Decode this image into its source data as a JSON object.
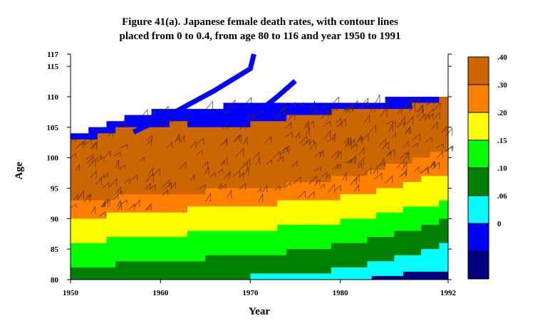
{
  "chart_data": {
    "type": "heatmap",
    "title_lines": [
      "Figure 41(a). Japanese female death rates, with contour lines",
      "placed from 0 to 0.4, from age 80 to 116 and year 1950 to 1991"
    ],
    "xlabel": "Year",
    "ylabel": "Age",
    "xlim": [
      1950,
      1992
    ],
    "ylim": [
      80,
      117
    ],
    "x_ticks": [
      {
        "value": 1950,
        "label": "1950"
      },
      {
        "value": 1960,
        "label": "1960"
      },
      {
        "value": 1970,
        "label": "1970"
      },
      {
        "value": 1980,
        "label": "1980"
      },
      {
        "value": 1992,
        "label": "1992"
      }
    ],
    "y_ticks": [
      {
        "value": 80,
        "label": "80"
      },
      {
        "value": 85,
        "label": "85"
      },
      {
        "value": 90,
        "label": "90"
      },
      {
        "value": 95,
        "label": "95"
      },
      {
        "value": 100,
        "label": "100"
      },
      {
        "value": 105,
        "label": "105"
      },
      {
        "value": 110,
        "label": "110"
      },
      {
        "value": 115,
        "label": "115"
      },
      {
        "value": 117,
        "label": "117"
      }
    ],
    "legend": {
      "placement": "right",
      "bins": [
        {
          "color": "#000080",
          "label": ""
        },
        {
          "color": "#0000ff",
          "label": "0"
        },
        {
          "color": "#00ffff",
          "label": ".06"
        },
        {
          "color": "#008000",
          "label": ".10"
        },
        {
          "color": "#00ff00",
          "label": ".15"
        },
        {
          "color": "#ffff00",
          "label": ".20"
        },
        {
          "color": "#ff8000",
          "label": ".30"
        },
        {
          "color": "#cc6600",
          "label": ".40"
        }
      ]
    },
    "boundaries": [
      {
        "name": "cyan_top",
        "points": [
          [
            1950,
            80
          ],
          [
            1965,
            80
          ],
          [
            1971,
            80.6
          ],
          [
            1979,
            81.6
          ],
          [
            1985,
            83.2
          ],
          [
            1992,
            86
          ]
        ]
      },
      {
        "name": "green_top",
        "points": [
          [
            1950,
            82
          ],
          [
            1958,
            82.8
          ],
          [
            1966,
            83.6
          ],
          [
            1974,
            84.6
          ],
          [
            1982,
            86.2
          ],
          [
            1992,
            90
          ]
        ]
      },
      {
        "name": "lime_top",
        "points": [
          [
            1950,
            86
          ],
          [
            1958,
            87
          ],
          [
            1966,
            87.8
          ],
          [
            1974,
            88.6
          ],
          [
            1982,
            90
          ],
          [
            1992,
            93
          ]
        ]
      },
      {
        "name": "yellow_top",
        "points": [
          [
            1950,
            90
          ],
          [
            1958,
            91
          ],
          [
            1966,
            91.8
          ],
          [
            1974,
            92.6
          ],
          [
            1982,
            94
          ],
          [
            1992,
            97.6
          ]
        ]
      },
      {
        "name": "orange_top",
        "points": [
          [
            1950,
            93
          ],
          [
            1958,
            93.8
          ],
          [
            1966,
            94.6
          ],
          [
            1974,
            95.6
          ],
          [
            1982,
            97.2
          ],
          [
            1992,
            101.6
          ]
        ]
      },
      {
        "name": "brown_top",
        "points": [
          [
            1950,
            102.6
          ],
          [
            1955,
            104.5
          ],
          [
            1961,
            105.6
          ],
          [
            1967,
            105
          ],
          [
            1973,
            106.4
          ],
          [
            1979,
            107.6
          ],
          [
            1985,
            107.6
          ],
          [
            1992,
            110
          ]
        ]
      },
      {
        "name": "blue_top",
        "points": [
          [
            1950,
            103.6
          ],
          [
            1955,
            106.4
          ],
          [
            1961,
            108.2
          ],
          [
            1966,
            108.4
          ],
          [
            1971,
            109.4
          ],
          [
            1977,
            109.2
          ],
          [
            1983,
            109.2
          ],
          [
            1992,
            110.6
          ]
        ]
      }
    ],
    "blue_streaks": [
      {
        "points": [
          [
            1957,
            104.2
          ],
          [
            1961,
            107
          ],
          [
            1966,
            111
          ],
          [
            1970,
            114.6
          ],
          [
            1970.4,
            117
          ]
        ]
      },
      {
        "points": [
          [
            1970,
            106.5
          ],
          [
            1973,
            110
          ],
          [
            1975,
            112.6
          ]
        ]
      }
    ]
  }
}
